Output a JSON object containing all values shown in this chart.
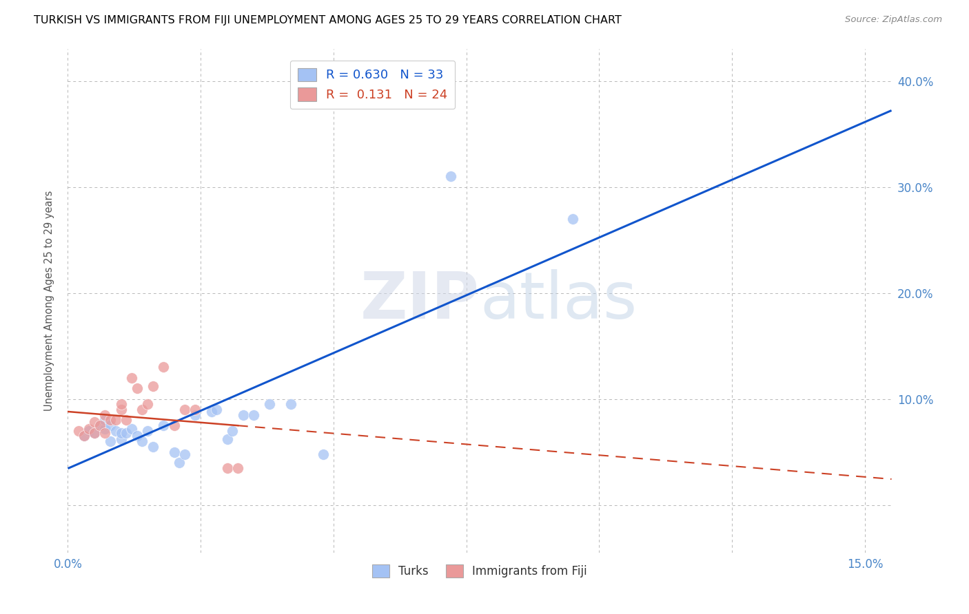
{
  "title": "TURKISH VS IMMIGRANTS FROM FIJI UNEMPLOYMENT AMONG AGES 25 TO 29 YEARS CORRELATION CHART",
  "source": "Source: ZipAtlas.com",
  "ylabel": "Unemployment Among Ages 25 to 29 years",
  "xlim": [
    0.0,
    0.155
  ],
  "ylim": [
    -0.045,
    0.43
  ],
  "xticks": [
    0.0,
    0.025,
    0.05,
    0.075,
    0.1,
    0.125,
    0.15
  ],
  "xtick_labels": [
    "0.0%",
    "",
    "",
    "",
    "",
    "",
    "15.0%"
  ],
  "ytick_positions": [
    0.0,
    0.1,
    0.2,
    0.3,
    0.4
  ],
  "ytick_labels": [
    "",
    "10.0%",
    "20.0%",
    "30.0%",
    "40.0%"
  ],
  "blue_R": "0.630",
  "blue_N": "33",
  "pink_R": "0.131",
  "pink_N": "24",
  "legend_label_blue": "Turks",
  "legend_label_pink": "Immigrants from Fiji",
  "blue_color": "#a4c2f4",
  "pink_color": "#ea9999",
  "blue_line_color": "#1155cc",
  "pink_line_color": "#cc4125",
  "background_color": "#ffffff",
  "grid_color": "#b7b7b7",
  "turks_x": [
    0.003,
    0.004,
    0.005,
    0.006,
    0.007,
    0.007,
    0.008,
    0.008,
    0.009,
    0.01,
    0.01,
    0.011,
    0.012,
    0.013,
    0.014,
    0.015,
    0.016,
    0.018,
    0.02,
    0.021,
    0.022,
    0.024,
    0.027,
    0.028,
    0.03,
    0.031,
    0.033,
    0.035,
    0.038,
    0.042,
    0.048,
    0.072,
    0.095
  ],
  "turks_y": [
    0.065,
    0.07,
    0.068,
    0.075,
    0.072,
    0.08,
    0.06,
    0.075,
    0.07,
    0.062,
    0.068,
    0.068,
    0.072,
    0.065,
    0.06,
    0.07,
    0.055,
    0.075,
    0.05,
    0.04,
    0.048,
    0.085,
    0.088,
    0.09,
    0.062,
    0.07,
    0.085,
    0.085,
    0.095,
    0.095,
    0.048,
    0.31,
    0.27
  ],
  "fiji_x": [
    0.002,
    0.003,
    0.004,
    0.005,
    0.005,
    0.006,
    0.007,
    0.007,
    0.008,
    0.009,
    0.01,
    0.01,
    0.011,
    0.012,
    0.013,
    0.014,
    0.015,
    0.016,
    0.018,
    0.02,
    0.022,
    0.024,
    0.03,
    0.032
  ],
  "fiji_y": [
    0.07,
    0.065,
    0.072,
    0.068,
    0.078,
    0.075,
    0.068,
    0.085,
    0.08,
    0.08,
    0.09,
    0.095,
    0.08,
    0.12,
    0.11,
    0.09,
    0.095,
    0.112,
    0.13,
    0.075,
    0.09,
    0.09,
    0.035,
    0.035
  ],
  "watermark_zip": "ZIP",
  "watermark_atlas": "atlas",
  "title_fontsize": 11.5,
  "tick_color": "#4a86c8"
}
